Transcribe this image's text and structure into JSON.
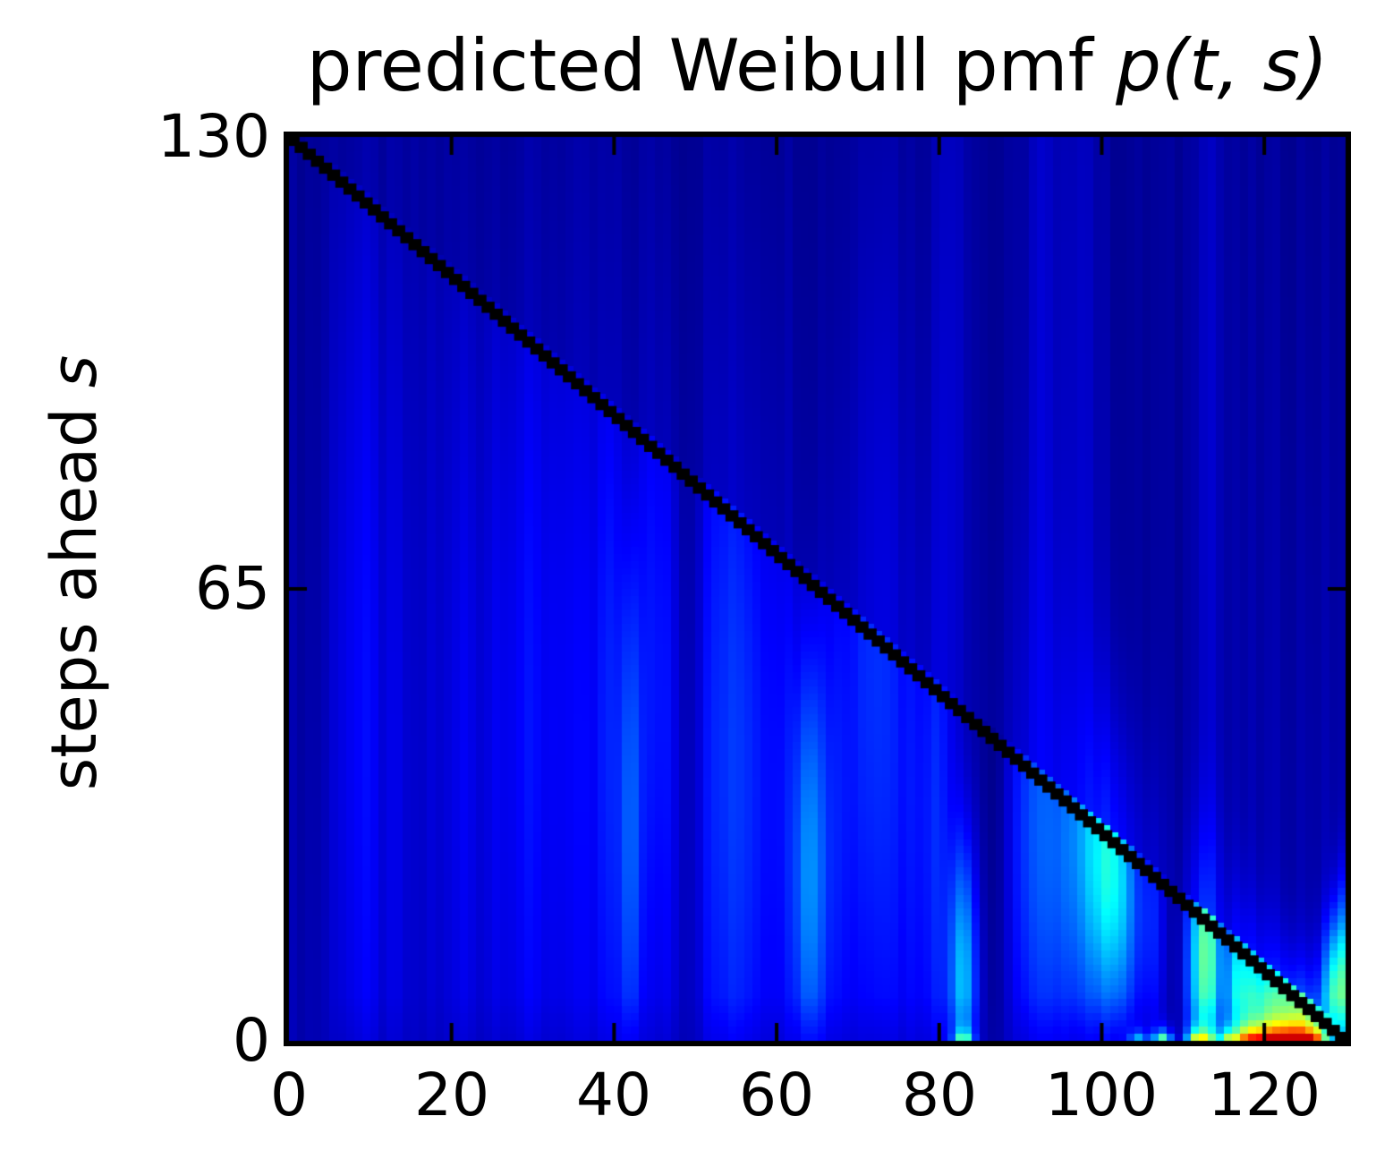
{
  "title_parts": {
    "prefix": "predicted Weibull pmf ",
    "math": "p(t, s)"
  },
  "ylabel_parts": {
    "prefix": "steps ahead ",
    "math": "s"
  },
  "chart_data": {
    "type": "heatmap",
    "title": "predicted Weibull pmf p(t, s)",
    "xlabel": "",
    "ylabel": "steps ahead s",
    "xlim": [
      0,
      130
    ],
    "ylim": [
      0,
      130
    ],
    "x_ticks": [
      0,
      20,
      40,
      60,
      80,
      100,
      120
    ],
    "x_tick_labels": [
      "0",
      "20",
      "40",
      "60",
      "80",
      "100",
      "120"
    ],
    "y_ticks": [
      130,
      65,
      0
    ],
    "y_tick_labels": [
      "130",
      "65",
      "0"
    ],
    "grid": false,
    "legend": "none",
    "colormap": "jet",
    "value_range": [
      0,
      1
    ],
    "frame_color": "#000000",
    "background_color": "#ffffff",
    "diagonal": {
      "from": [
        0,
        130
      ],
      "to": [
        130,
        0
      ],
      "color": "#000000",
      "thickness_cells": 1.6,
      "description": "stepped black line marking s = 130 - t (time of observed event)"
    },
    "heatmap_model": {
      "grid_size": 130,
      "base": 0.025,
      "vertical_gradient": 0.025,
      "column_jitter": 0.02,
      "above_diagonal_attenuation": 0.3,
      "clamp_max": 0.92,
      "streaks": [
        [
          6,
          1.3,
          0.05,
          55,
          60
        ],
        [
          9,
          1.6,
          0.08,
          50,
          60
        ],
        [
          13,
          1.3,
          0.05,
          48,
          60
        ],
        [
          17,
          1.2,
          0.04,
          50,
          60
        ],
        [
          21,
          1.6,
          0.07,
          46,
          55
        ],
        [
          25,
          1.3,
          0.05,
          50,
          60
        ],
        [
          29,
          2.3,
          0.09,
          50,
          55
        ],
        [
          33,
          1.3,
          0.05,
          55,
          60
        ],
        [
          36,
          1.6,
          0.07,
          46,
          55
        ],
        [
          39,
          1.1,
          0.1,
          46,
          50
        ],
        [
          41.5,
          0.9,
          0.16,
          30,
          30
        ],
        [
          44,
          1.6,
          0.09,
          55,
          45
        ],
        [
          46.5,
          1.2,
          0.07,
          50,
          50
        ],
        [
          48.5,
          1.6,
          -0.04,
          70,
          60
        ],
        [
          52,
          2.3,
          0.11,
          45,
          55
        ],
        [
          56,
          1.9,
          0.1,
          40,
          50
        ],
        [
          60,
          1.6,
          0.08,
          40,
          50
        ],
        [
          63.5,
          1.4,
          0.22,
          24,
          24
        ],
        [
          67,
          1.6,
          0.1,
          35,
          40
        ],
        [
          70,
          1.3,
          0.07,
          60,
          50
        ],
        [
          72.5,
          1.6,
          0.12,
          55,
          55,
          0.5
        ],
        [
          76,
          1.6,
          0.08,
          40,
          45
        ],
        [
          79,
          1.4,
          0.09,
          30,
          40
        ],
        [
          81,
          1.6,
          0.05,
          95,
          70,
          1
        ],
        [
          82.5,
          1.2,
          0.26,
          8,
          14
        ],
        [
          86.5,
          1.6,
          -0.035,
          60,
          60
        ],
        [
          90,
          1.6,
          0.12,
          30,
          28
        ],
        [
          92,
          1.4,
          0.05,
          95,
          70,
          1
        ],
        [
          93,
          1.4,
          0.1,
          28,
          26
        ],
        [
          96,
          1.6,
          0.16,
          28,
          22
        ],
        [
          97,
          1.4,
          0.05,
          95,
          70,
          1
        ],
        [
          98.5,
          1.2,
          0.18,
          27,
          18
        ],
        [
          100.5,
          1.2,
          0.26,
          25,
          16
        ],
        [
          102.5,
          1.2,
          0.2,
          21,
          16
        ],
        [
          104,
          1.2,
          -0.05,
          40,
          50
        ],
        [
          105.5,
          1.4,
          0.14,
          18,
          16
        ],
        [
          108.5,
          1.6,
          -0.05,
          40,
          50
        ],
        [
          110.5,
          1.1,
          0.12,
          10,
          14
        ],
        [
          112.5,
          1.2,
          0.4,
          12,
          14
        ],
        [
          112.5,
          1.2,
          0.05,
          95,
          70,
          1
        ],
        [
          114.5,
          1.0,
          -0.03,
          30,
          40
        ],
        [
          116,
          1.1,
          0.28,
          7,
          11
        ],
        [
          118,
          1.1,
          0.24,
          5,
          10
        ],
        [
          120,
          1.1,
          0.26,
          4,
          9
        ],
        [
          122,
          1.1,
          0.28,
          3.5,
          8
        ],
        [
          124,
          1.1,
          0.3,
          3,
          7
        ],
        [
          126,
          1.1,
          0.22,
          3,
          7
        ],
        [
          128,
          1.0,
          0.32,
          5,
          8,
          1
        ],
        [
          129.5,
          0.9,
          0.28,
          7,
          10,
          1
        ]
      ],
      "bottom_hotspots": [
        [
          82.5,
          0.28,
          1.2
        ],
        [
          104,
          0.2,
          0.9
        ],
        [
          107,
          0.38,
          1.0
        ],
        [
          111,
          0.34,
          1.3
        ],
        [
          112.5,
          0.26,
          1.4
        ],
        [
          115,
          0.36,
          1.4
        ],
        [
          117,
          0.4,
          1.8
        ],
        [
          118.5,
          0.44,
          2.0
        ],
        [
          120,
          0.48,
          2.2
        ],
        [
          121.5,
          0.52,
          2.3
        ],
        [
          123,
          0.54,
          2.3
        ],
        [
          124.5,
          0.52,
          2.2
        ],
        [
          126,
          0.44,
          2.0
        ]
      ],
      "notes": "dark navy field with brighter blue vertical pmf streaks; bright cyan blob below the diagonal near t=95-113; green/yellow/orange/red mass along the bottom row for t=82 and t=104-126"
    }
  },
  "frame": {
    "color": "#000000",
    "line_width": 6,
    "tick_length": 20,
    "tick_width": 4
  }
}
